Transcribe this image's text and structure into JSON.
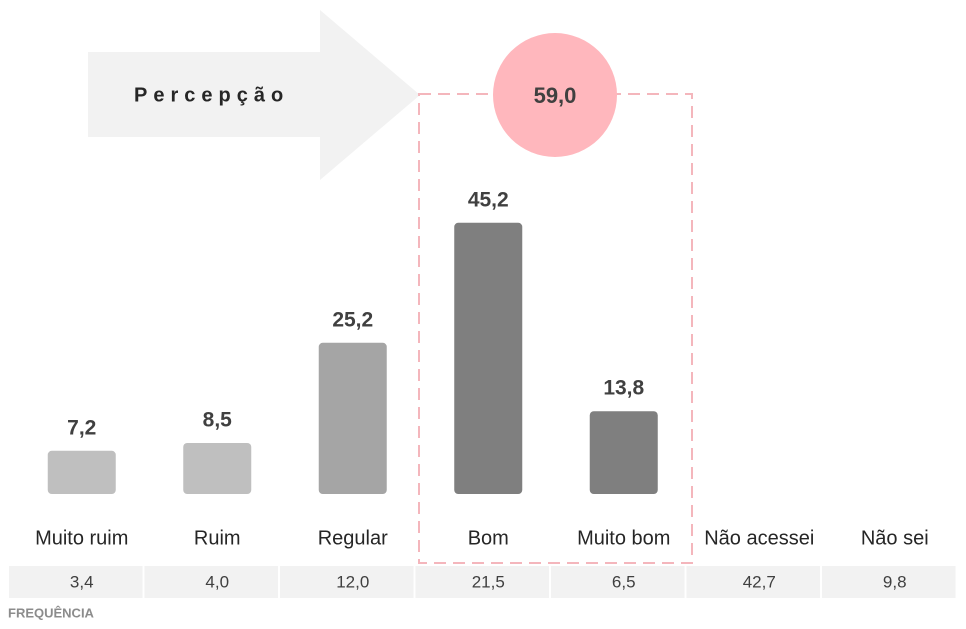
{
  "chart_data": {
    "type": "bar",
    "label": "Percepção",
    "categories": [
      "Muito ruim",
      "Ruim",
      "Regular",
      "Bom",
      "Muito bom",
      "Não acessei",
      "Não sei"
    ],
    "values": [
      7.2,
      8.5,
      25.2,
      45.2,
      13.8,
      null,
      null
    ],
    "value_labels": [
      "7,2",
      "8,5",
      "25,2",
      "45,2",
      "13,8",
      null,
      null
    ],
    "colors": [
      "#bfbfbf",
      "#bfbfbf",
      "#a5a5a5",
      "#7f7f7f",
      "#7f7f7f",
      null,
      null
    ],
    "highlight": {
      "value": 59.0,
      "label": "59,0",
      "color": "#ffb7bd"
    },
    "frequency": {
      "title": "FREQUÊNCIA",
      "values": [
        3.4,
        4.0,
        12.0,
        21.5,
        6.5,
        42.7,
        9.8
      ],
      "value_labels": [
        "3,4",
        "4,0",
        "12,0",
        "21,5",
        "6,5",
        "42,7",
        "9,8"
      ]
    }
  }
}
